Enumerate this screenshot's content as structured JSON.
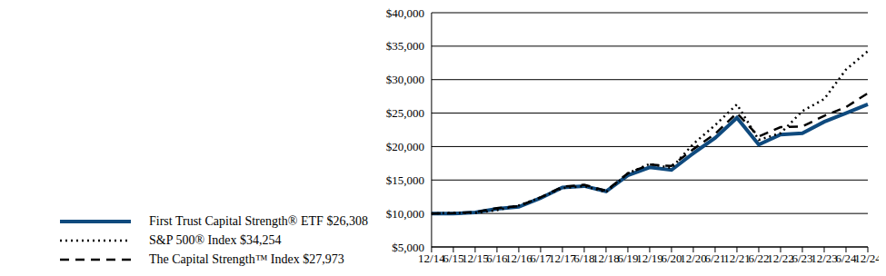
{
  "chart_data": {
    "type": "line",
    "categories": [
      "12/14",
      "6/15",
      "12/15",
      "6/16",
      "12/16",
      "6/17",
      "12/17",
      "6/18",
      "12/18",
      "6/19",
      "12/19",
      "6/20",
      "12/20",
      "6/21",
      "12/21",
      "6/22",
      "12/22",
      "6/23",
      "12/23",
      "6/24",
      "12/24"
    ],
    "series": [
      {
        "name": "First Trust Capital Strength® ETF $26,308",
        "color": "#0f4a7e",
        "line_style": "solid",
        "values": [
          10000,
          10000,
          10150,
          10700,
          11000,
          12300,
          13900,
          14100,
          13300,
          15700,
          16900,
          16500,
          19000,
          21300,
          24300,
          20300,
          21800,
          22000,
          23700,
          25000,
          26308
        ]
      },
      {
        "name": "S&P 500® Index $34,254",
        "color": "#000000",
        "line_style": "dotted",
        "values": [
          10000,
          10100,
          10100,
          10500,
          11200,
          12400,
          13800,
          14100,
          13200,
          16000,
          17400,
          16800,
          20400,
          23200,
          26300,
          21000,
          22000,
          25300,
          27100,
          31500,
          34254
        ]
      },
      {
        "name": "The Capital Strength™ Index $27,973",
        "color": "#000000",
        "line_style": "dashed",
        "values": [
          10000,
          10050,
          10200,
          10800,
          11100,
          12400,
          14000,
          14300,
          13400,
          16000,
          17300,
          17100,
          19600,
          21900,
          25000,
          21500,
          22900,
          23000,
          24600,
          25900,
          27973
        ]
      }
    ],
    "ylim": [
      5000,
      40000
    ],
    "yticks": [
      {
        "value": 5000,
        "label": "$5,000"
      },
      {
        "value": 10000,
        "label": "$10,000"
      },
      {
        "value": 15000,
        "label": "$15,000"
      },
      {
        "value": 20000,
        "label": "$20,000"
      },
      {
        "value": 25000,
        "label": "$25,000"
      },
      {
        "value": 30000,
        "label": "$30,000"
      },
      {
        "value": 35000,
        "label": "$35,000"
      },
      {
        "value": 40000,
        "label": "$40,000"
      }
    ],
    "grid": true,
    "legend": "bottom"
  }
}
